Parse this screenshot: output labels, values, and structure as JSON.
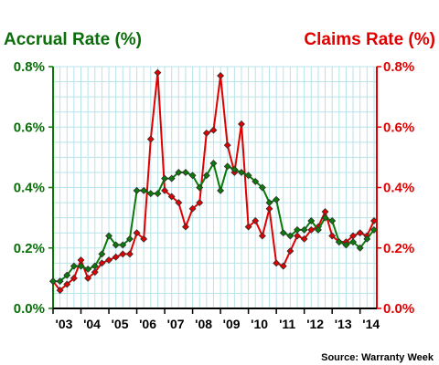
{
  "chart_data": {
    "type": "line",
    "title_left": "Accrual Rate (%)",
    "title_right": "Claims Rate (%)",
    "source": "Source: Warranty Week",
    "x_tick_labels": [
      "'03",
      "'04",
      "'05",
      "'06",
      "'07",
      "'08",
      "'09",
      "'10",
      "'11",
      "'12",
      "'13",
      "'14"
    ],
    "x_ticks": [
      2003,
      2004,
      2005,
      2006,
      2007,
      2008,
      2009,
      2010,
      2011,
      2012,
      2013,
      2014
    ],
    "xlim": [
      2003,
      2014.6
    ],
    "y_left_ticks": [
      "0.0%",
      "0.2%",
      "0.4%",
      "0.6%",
      "0.8%"
    ],
    "y_right_ticks": [
      "0.0%",
      "0.2%",
      "0.4%",
      "0.6%",
      "0.8%"
    ],
    "ylim": [
      0,
      0.8
    ],
    "grid": true,
    "series": [
      {
        "axis": "left",
        "color": "#0a7a0a",
        "x": [
          2003.0,
          2003.25,
          2003.5,
          2003.75,
          2004.0,
          2004.25,
          2004.5,
          2004.75,
          2005.0,
          2005.25,
          2005.5,
          2005.75,
          2006.0,
          2006.25,
          2006.5,
          2006.75,
          2007.0,
          2007.25,
          2007.5,
          2007.75,
          2008.0,
          2008.25,
          2008.5,
          2008.75,
          2009.0,
          2009.25,
          2009.5,
          2009.75,
          2010.0,
          2010.25,
          2010.5,
          2010.75,
          2011.0,
          2011.25,
          2011.5,
          2011.75,
          2012.0,
          2012.25,
          2012.5,
          2012.75,
          2013.0,
          2013.25,
          2013.5,
          2013.75,
          2014.0,
          2014.25,
          2014.5
        ],
        "values": [
          0.09,
          0.09,
          0.11,
          0.14,
          0.14,
          0.13,
          0.14,
          0.18,
          0.24,
          0.21,
          0.21,
          0.23,
          0.39,
          0.39,
          0.38,
          0.38,
          0.43,
          0.43,
          0.45,
          0.45,
          0.44,
          0.4,
          0.44,
          0.48,
          0.39,
          0.47,
          0.46,
          0.45,
          0.44,
          0.42,
          0.4,
          0.35,
          0.36,
          0.25,
          0.24,
          0.26,
          0.26,
          0.29,
          0.26,
          0.3,
          0.29,
          0.22,
          0.21,
          0.22,
          0.2,
          0.23,
          0.26
        ]
      },
      {
        "axis": "right",
        "color": "#e00000",
        "x": [
          2003.0,
          2003.25,
          2003.5,
          2003.75,
          2004.0,
          2004.25,
          2004.5,
          2004.75,
          2005.0,
          2005.25,
          2005.5,
          2005.75,
          2006.0,
          2006.25,
          2006.5,
          2006.75,
          2007.0,
          2007.25,
          2007.5,
          2007.75,
          2008.0,
          2008.25,
          2008.5,
          2008.75,
          2009.0,
          2009.25,
          2009.5,
          2009.75,
          2010.0,
          2010.25,
          2010.5,
          2010.75,
          2011.0,
          2011.25,
          2011.5,
          2011.75,
          2012.0,
          2012.25,
          2012.5,
          2012.75,
          2013.0,
          2013.25,
          2013.5,
          2013.75,
          2014.0,
          2014.25,
          2014.5
        ],
        "values": [
          0.09,
          0.06,
          0.08,
          0.1,
          0.16,
          0.1,
          0.12,
          0.15,
          0.16,
          0.17,
          0.18,
          0.18,
          0.25,
          0.23,
          0.56,
          0.78,
          0.39,
          0.37,
          0.35,
          0.27,
          0.33,
          0.35,
          0.58,
          0.59,
          0.77,
          0.54,
          0.45,
          0.61,
          0.27,
          0.29,
          0.24,
          0.33,
          0.15,
          0.14,
          0.19,
          0.24,
          0.23,
          0.26,
          0.27,
          0.32,
          0.24,
          0.22,
          0.22,
          0.24,
          0.25,
          0.24,
          0.29
        ]
      }
    ]
  }
}
